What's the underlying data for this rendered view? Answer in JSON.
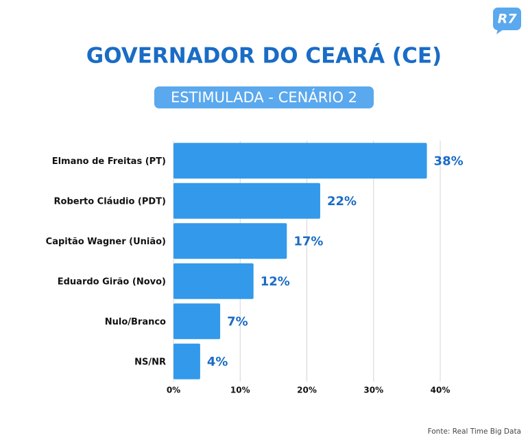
{
  "chart_data": {
    "type": "bar",
    "orientation": "horizontal",
    "title": "GOVERNADOR DO CEARÁ (CE)",
    "subtitle": "ESTIMULADA - CENÁRIO 2",
    "logo": "R7",
    "source": "Fonte: Real Time Big Data",
    "categories": [
      "Elmano de Freitas (PT)",
      "Roberto Cláudio (PDT)",
      "Capitão Wagner (União)",
      "Eduardo Girão (Novo)",
      "Nulo/Branco",
      "NS/NR"
    ],
    "values": [
      38,
      22,
      17,
      12,
      7,
      4
    ],
    "value_labels": [
      "38%",
      "22%",
      "17%",
      "12%",
      "7%",
      "4%"
    ],
    "color": "#3399ea",
    "xlim": [
      0,
      40
    ],
    "xticks": [
      {
        "value": 0,
        "label": "0%"
      },
      {
        "value": 10,
        "label": "10%"
      },
      {
        "value": 20,
        "label": "20%"
      },
      {
        "value": 30,
        "label": "30%"
      },
      {
        "value": 40,
        "label": "40%"
      }
    ],
    "grid": true
  }
}
